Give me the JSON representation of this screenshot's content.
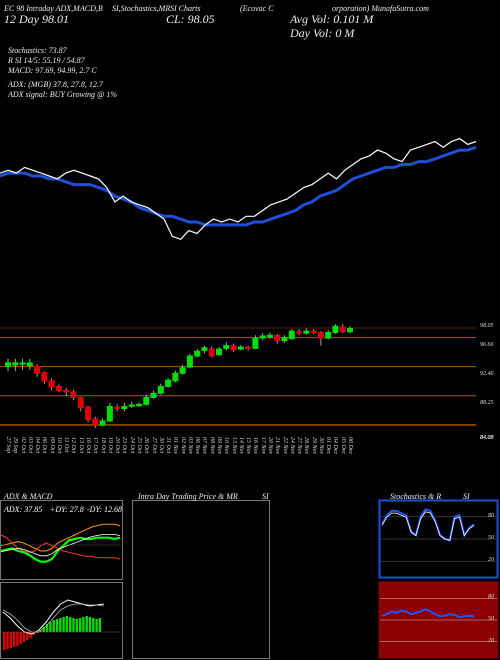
{
  "header": {
    "line1_left": "EC 98 Intraday ADX,MACD,B",
    "line1_mid1": "SI,Stochastics,MR",
    "line1_mid2": "SI Charts",
    "line1_mid3": "(Ecovac C",
    "line1_right": "orporation) MunafaSutra.com",
    "day_close": "12 Day  98.01",
    "cl": "CL: 98.05",
    "avg_vol": "Avg Vol: 0.101  M",
    "day_vol": "Day Vol: 0   M",
    "stoch": "Stochastics: 73.87",
    "rsi": "R           SI 14/5: 55.19 / 54.87",
    "macd": "MACD: 97.69, 94.99, 2.7 C",
    "adx": "ADX:                          (MGB) 37.8,  27.8,  12.7",
    "adx_signal": "ADX  signal:                               BUY Growing @ 1%"
  },
  "chart_data": [
    {
      "type": "line",
      "title": "",
      "series": [
        {
          "values": [
            79,
            80,
            80,
            80,
            79,
            79,
            78,
            78,
            77,
            76,
            76,
            76,
            75,
            74,
            72,
            71,
            70,
            68,
            67,
            66,
            65,
            65,
            64,
            63,
            63,
            62,
            62,
            62,
            62,
            62,
            62,
            63,
            63,
            64,
            65,
            66,
            67,
            69,
            70,
            72,
            73,
            74,
            76,
            78,
            79,
            80,
            81,
            82,
            82,
            83,
            83,
            84,
            84,
            85,
            86,
            87,
            88,
            88,
            89
          ]
        },
        {
          "values": [
            80,
            81,
            80,
            82,
            81,
            80,
            79,
            78,
            80,
            81,
            80,
            79,
            78,
            75,
            70,
            72,
            70,
            69,
            68,
            66,
            64,
            58,
            57,
            60,
            59,
            62,
            64,
            63,
            64,
            63,
            65,
            65,
            67,
            69,
            70,
            71,
            73,
            75,
            76,
            78,
            80,
            78,
            81,
            83,
            85,
            86,
            88,
            87,
            85,
            84,
            88,
            89,
            90,
            91,
            89,
            91,
            92,
            90,
            91
          ]
        }
      ]
    },
    {
      "type": "bar",
      "title": "",
      "price_labels": [
        "98.05",
        "96.66",
        "92.46",
        "88.25",
        "84.05",
        "84.03",
        "84.00"
      ],
      "x_labels": [
        "27 Sep",
        "29 Sep",
        "02 Oct",
        "03 Oct",
        "04 Oct",
        "06 Oct",
        "09 Oct",
        "10 Oct",
        "11 Oct",
        "12 Oct",
        "13 Oct",
        "16 Oct",
        "17 Oct",
        "18 Oct",
        "19 Oct",
        "20 Oct",
        "23 Oct",
        "24 Oct",
        "25 Oct",
        "26 Oct",
        "27 Oct",
        "30 Oct",
        "31 Oct",
        "01 Nov",
        "02 Nov",
        "03 Nov",
        "06 Nov",
        "07 Nov",
        "08 Nov",
        "09 Nov",
        "10 Nov",
        "13 Nov",
        "14 Nov",
        "15 Nov",
        "16 Nov",
        "17 Nov",
        "20 Nov",
        "21 Nov",
        "22 Nov",
        "24 Nov",
        "27 Nov",
        "28 Nov",
        "29 Nov",
        "30 Nov",
        "01 Dec",
        "04 Dec",
        "05 Dec",
        "06 Dec"
      ],
      "candles": [
        [
          92.5,
          93.0,
          93.6,
          91.8
        ],
        [
          92.7,
          93.0,
          93.6,
          91.8
        ],
        [
          92.8,
          93.0,
          93.6,
          92.0
        ],
        [
          92.6,
          93.0,
          93.6,
          92.0
        ],
        [
          92.5,
          91.5,
          92.8,
          91.0
        ],
        [
          91.6,
          90.4,
          91.8,
          90.0
        ],
        [
          90.4,
          89.5,
          90.8,
          89.0
        ],
        [
          89.6,
          89.0,
          89.9,
          88.8
        ],
        [
          89.0,
          88.8,
          89.4,
          88.2
        ],
        [
          88.8,
          88.0,
          89.1,
          87.6
        ],
        [
          88.0,
          86.5,
          88.1,
          86.0
        ],
        [
          86.6,
          84.8,
          86.8,
          84.4
        ],
        [
          84.9,
          84.0,
          85.2,
          83.6
        ],
        [
          84.0,
          84.6,
          85.0,
          83.8
        ],
        [
          84.6,
          86.7,
          87.2,
          84.4
        ],
        [
          86.6,
          86.4,
          87.0,
          86.0
        ],
        [
          86.4,
          86.7,
          87.2,
          86.0
        ],
        [
          86.8,
          86.9,
          87.4,
          86.5
        ],
        [
          86.8,
          87.0,
          87.3,
          86.6
        ],
        [
          87.0,
          88.0,
          88.4,
          86.8
        ],
        [
          88.0,
          88.6,
          89.0,
          87.8
        ],
        [
          88.6,
          89.6,
          90.0,
          88.4
        ],
        [
          89.6,
          90.5,
          90.8,
          89.4
        ],
        [
          90.4,
          91.5,
          91.9,
          90.2
        ],
        [
          91.5,
          92.3,
          92.7,
          91.3
        ],
        [
          92.4,
          94.0,
          94.3,
          92.2
        ],
        [
          94.0,
          94.7,
          95.0,
          93.8
        ],
        [
          94.8,
          95.2,
          95.5,
          94.4
        ],
        [
          95.0,
          94.0,
          95.4,
          93.8
        ],
        [
          94.2,
          95.0,
          95.3,
          94.0
        ],
        [
          95.1,
          95.5,
          96.0,
          94.8
        ],
        [
          95.5,
          94.9,
          95.8,
          94.6
        ],
        [
          95.0,
          95.3,
          95.6,
          94.8
        ],
        [
          95.3,
          95.1,
          95.5,
          94.8
        ],
        [
          95.1,
          96.6,
          97.0,
          95.0
        ],
        [
          96.6,
          96.9,
          97.3,
          96.3
        ],
        [
          96.8,
          97.0,
          97.4,
          96.5
        ],
        [
          97.0,
          96.2,
          97.2,
          95.8
        ],
        [
          96.2,
          96.7,
          97.0,
          95.9
        ],
        [
          96.5,
          97.6,
          97.9,
          96.4
        ],
        [
          97.5,
          97.3,
          97.9,
          97.0
        ],
        [
          97.3,
          97.6,
          98.0,
          97.1
        ],
        [
          97.6,
          97.4,
          97.9,
          97.2
        ],
        [
          97.4,
          96.6,
          97.6,
          95.5
        ],
        [
          96.6,
          97.4,
          97.8,
          96.4
        ],
        [
          97.4,
          98.3,
          98.6,
          97.2
        ],
        [
          98.2,
          97.5,
          98.6,
          97.3
        ],
        [
          97.5,
          98.0,
          98.3,
          97.3
        ]
      ]
    },
    {
      "type": "line",
      "title": "ADX  & MACD",
      "adx_label": "ADX: 37.85",
      "plus_di_label": "+DY: 27.8",
      "minus_di_label": "-DY: 12.68"
    },
    {
      "type": "line",
      "title": "Intra  Day Trading Price  & MR",
      "title_right": "SI"
    },
    {
      "type": "line",
      "title": "Stochastics & R",
      "title_right": "SI",
      "stoch_ticks": [
        "80",
        "50",
        "20"
      ],
      "rsi_ticks": [
        "80",
        "50",
        "20"
      ],
      "stoch_values": [
        70,
        82,
        88,
        88,
        85,
        82,
        60,
        55,
        80,
        90,
        88,
        75,
        55,
        50,
        48,
        80,
        82,
        55,
        65,
        70
      ],
      "rsi_values": [
        56,
        58,
        62,
        60,
        63,
        62,
        58,
        60,
        62,
        65,
        62,
        58,
        55,
        56,
        58,
        57,
        54,
        55,
        56,
        55
      ]
    }
  ],
  "colors": {
    "bg": "#000000",
    "ema_blue": "#1f4fd8",
    "price_white": "#ffffff",
    "up": "#00e000",
    "down": "#e00000",
    "level_line": "#b05a00"
  }
}
